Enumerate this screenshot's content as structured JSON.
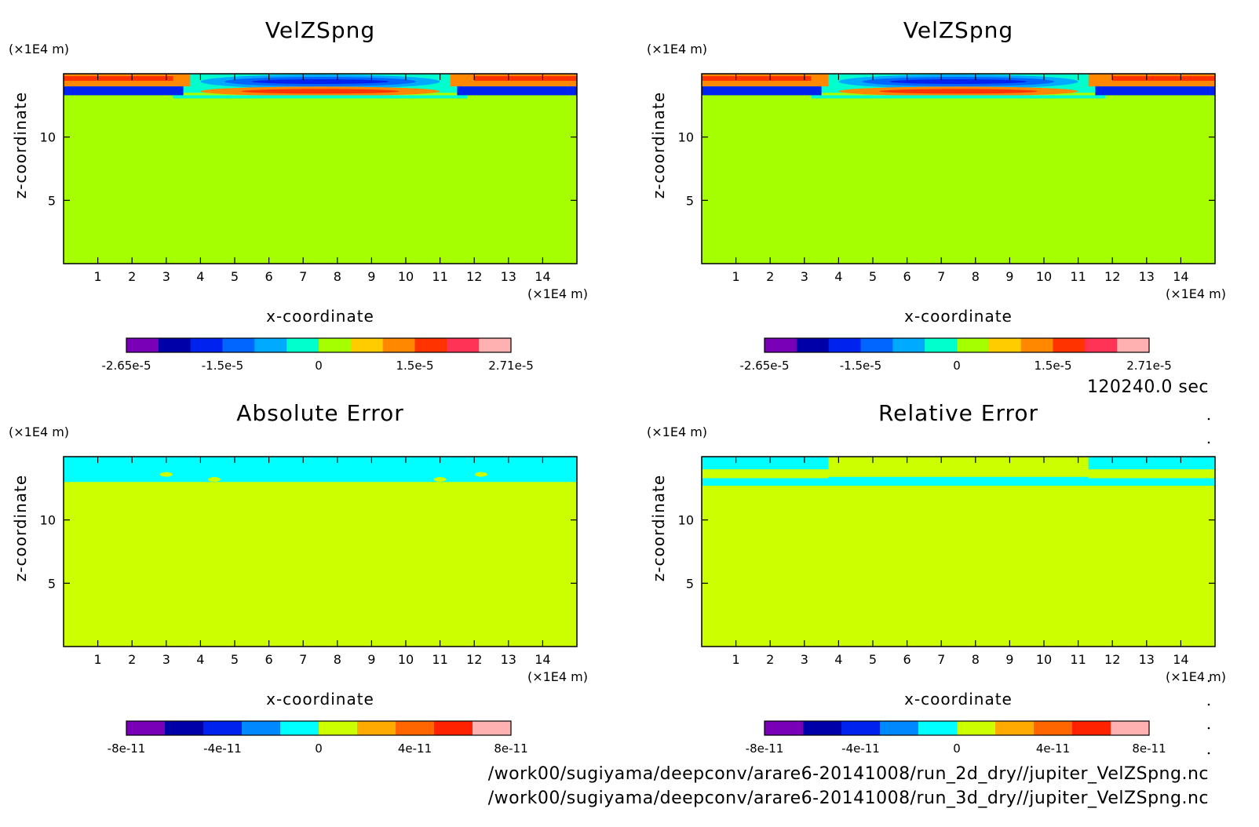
{
  "timestamp": "120240.0 sec",
  "file_paths": [
    "/work00/sugiyama/deepconv/arare6-20141008/run_2d_dry//jupiter_VelZSpng.nc",
    "/work00/sugiyama/deepconv/arare6-20141008/run_3d_dry//jupiter_VelZSpng.nc"
  ],
  "colors": {
    "background": "#a5ff00",
    "abs_background": "#ccff00",
    "rel_background": "#ccff00",
    "cyan": "#00ffff",
    "blue": "#0044ff",
    "red": "#ff3300",
    "orange": "#ff9900"
  },
  "chart_data": [
    {
      "type": "heatmap",
      "title": "VelZSpng",
      "xlabel": "x-coordinate",
      "ylabel": "z-coordinate",
      "x_unit": "(×1E4 m)",
      "y_unit": "(×1E4 m)",
      "xlim": [
        0,
        15
      ],
      "ylim": [
        0,
        15
      ],
      "x_ticks": [
        "1",
        "2",
        "3",
        "4",
        "5",
        "6",
        "7",
        "8",
        "9",
        "10",
        "11",
        "12",
        "13",
        "14"
      ],
      "y_ticks": [
        "5",
        "10"
      ],
      "colorbar": {
        "colors": [
          "#7a00b8",
          "#0000a8",
          "#0022ee",
          "#0066ff",
          "#00aaff",
          "#00ffcc",
          "#a5ff00",
          "#ffcc00",
          "#ff8800",
          "#ff3300",
          "#ff3355",
          "#ffb0b0"
        ],
        "labels": [
          "-2.65e-5",
          "-1.5e-5",
          "0",
          "1.5e-5",
          "2.71e-5"
        ]
      }
    },
    {
      "type": "heatmap",
      "title": "VelZSpng",
      "xlabel": "x-coordinate",
      "ylabel": "z-coordinate",
      "x_unit": "(×1E4 m)",
      "y_unit": "(×1E4 m)",
      "xlim": [
        0,
        15
      ],
      "ylim": [
        0,
        15
      ],
      "x_ticks": [
        "1",
        "2",
        "3",
        "4",
        "5",
        "6",
        "7",
        "8",
        "9",
        "10",
        "11",
        "12",
        "13",
        "14"
      ],
      "y_ticks": [
        "5",
        "10"
      ],
      "colorbar": {
        "colors": [
          "#7a00b8",
          "#0000a8",
          "#0022ee",
          "#0066ff",
          "#00aaff",
          "#00ffcc",
          "#a5ff00",
          "#ffcc00",
          "#ff8800",
          "#ff3300",
          "#ff3355",
          "#ffb0b0"
        ],
        "labels": [
          "-2.65e-5",
          "-1.5e-5",
          "0",
          "1.5e-5",
          "2.71e-5"
        ]
      }
    },
    {
      "type": "heatmap",
      "title": "Absolute Error",
      "xlabel": "x-coordinate",
      "ylabel": "z-coordinate",
      "x_unit": "(×1E4 m)",
      "y_unit": "(×1E4 m)",
      "xlim": [
        0,
        15
      ],
      "ylim": [
        0,
        15
      ],
      "x_ticks": [
        "1",
        "2",
        "3",
        "4",
        "5",
        "6",
        "7",
        "8",
        "9",
        "10",
        "11",
        "12",
        "13",
        "14"
      ],
      "y_ticks": [
        "5",
        "10"
      ],
      "colorbar": {
        "colors": [
          "#7a00b8",
          "#0000a8",
          "#0022ee",
          "#0088ff",
          "#00ffff",
          "#ccff00",
          "#ffaa00",
          "#ff6600",
          "#ff2200",
          "#ffb0b0"
        ],
        "labels": [
          "-8e-11",
          "-4e-11",
          "0",
          "4e-11",
          "8e-11"
        ]
      }
    },
    {
      "type": "heatmap",
      "title": "Relative Error",
      "xlabel": "x-coordinate",
      "ylabel": "z-coordinate",
      "x_unit": "(×1E4 m)",
      "y_unit": "(×1E4 m)",
      "xlim": [
        0,
        15
      ],
      "ylim": [
        0,
        15
      ],
      "x_ticks": [
        "1",
        "2",
        "3",
        "4",
        "5",
        "6",
        "7",
        "8",
        "9",
        "10",
        "11",
        "12",
        "13",
        "14"
      ],
      "y_ticks": [
        "5",
        "10"
      ],
      "colorbar": {
        "colors": [
          "#7a00b8",
          "#0000a8",
          "#0022ee",
          "#0088ff",
          "#00ffff",
          "#ccff00",
          "#ffaa00",
          "#ff6600",
          "#ff2200",
          "#ffb0b0"
        ],
        "labels": [
          "-8e-11",
          "-4e-11",
          "0",
          "4e-11",
          "8e-11"
        ]
      }
    }
  ]
}
